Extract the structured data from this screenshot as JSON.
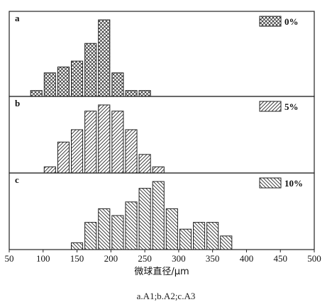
{
  "caption": "a.A1;b.A2;c.A3",
  "chart_data": {
    "type": "bar",
    "xlabel": "微球直径/μm",
    "ylabel": "",
    "xlim": [
      50,
      500
    ],
    "xticks": [
      50,
      100,
      150,
      200,
      250,
      300,
      350,
      400,
      450,
      500
    ],
    "bin_width": 20,
    "grid": false,
    "legend_position": "top-right",
    "panels": [
      {
        "label": "a",
        "legend": "0%",
        "pattern": "crosshatch",
        "x": [
          90,
          110,
          130,
          150,
          170,
          190,
          210,
          230,
          250
        ],
        "values": [
          1,
          4,
          5,
          6,
          9,
          13,
          4,
          1,
          1
        ]
      },
      {
        "label": "b",
        "legend": "5%",
        "pattern": "diagonal-right",
        "x": [
          110,
          130,
          150,
          170,
          190,
          210,
          230,
          250,
          270
        ],
        "values": [
          1,
          5,
          7,
          10,
          11,
          10,
          7,
          3,
          1
        ]
      },
      {
        "label": "c",
        "legend": "10%",
        "pattern": "diagonal-left",
        "x": [
          150,
          170,
          190,
          210,
          230,
          250,
          270,
          290,
          310,
          330,
          350,
          370
        ],
        "values": [
          1,
          4,
          6,
          5,
          7,
          9,
          10,
          6,
          3,
          4,
          4,
          2
        ]
      }
    ]
  }
}
